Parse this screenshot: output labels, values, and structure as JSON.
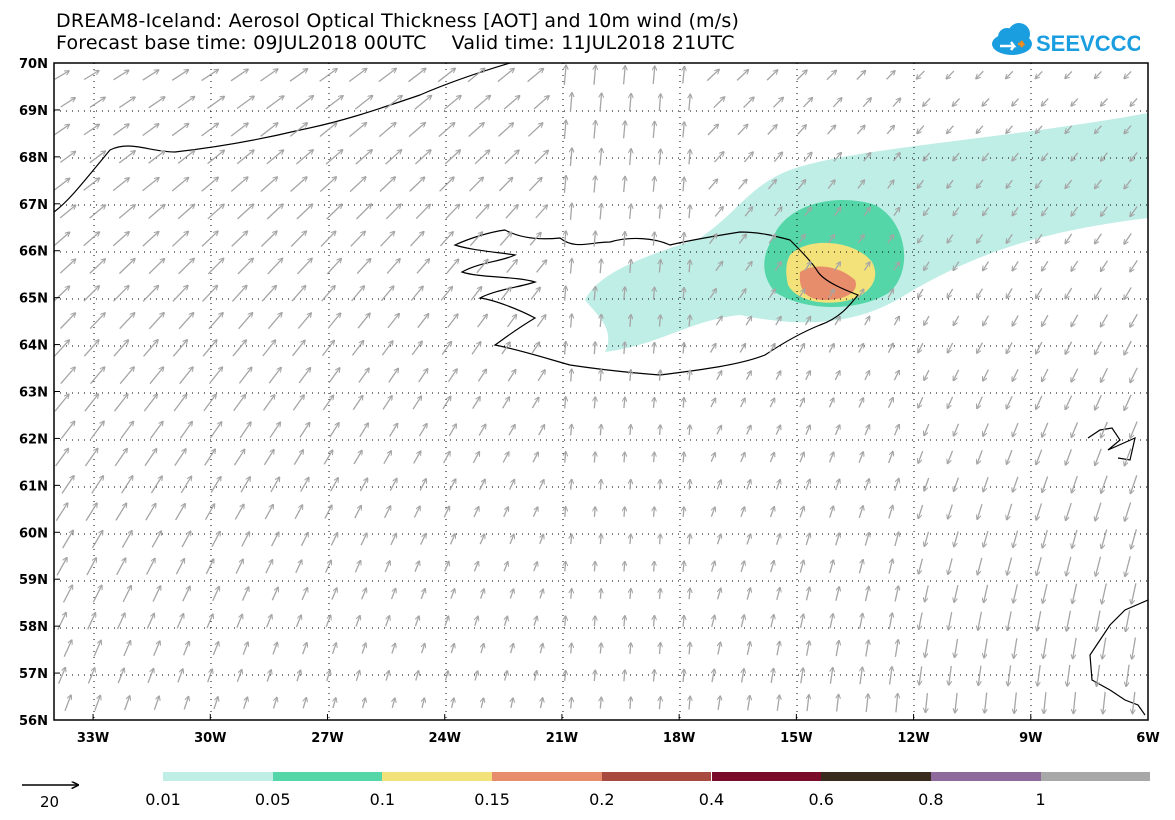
{
  "title": {
    "line1": "DREAM8-Iceland: Aerosol Optical Thickness [AOT] and 10m wind (m/s)",
    "line2": "Forecast base time: 09JUL2018 00UTC    Valid time: 11JUL2018 21UTC"
  },
  "logo": {
    "text": "SEEVCCC",
    "icon": "cloud-icon",
    "color": "#1a9ee0"
  },
  "axes": {
    "lon_range": [
      -34,
      -6
    ],
    "lat_range": [
      56,
      70
    ],
    "lon_labels": [
      "33W",
      "30W",
      "27W",
      "24W",
      "21W",
      "18W",
      "15W",
      "12W",
      "9W",
      "6W"
    ],
    "lat_labels": [
      "56N",
      "57N",
      "58N",
      "59N",
      "60N",
      "61N",
      "62N",
      "63N",
      "64N",
      "65N",
      "66N",
      "67N",
      "68N",
      "69N",
      "70N"
    ],
    "gridlines": "dotted"
  },
  "legend": {
    "colorbar": [
      {
        "label": "0.01",
        "color": "#bfeee6"
      },
      {
        "label": "0.05",
        "color": "#55d6a9"
      },
      {
        "label": "0.1",
        "color": "#f3e27a"
      },
      {
        "label": "0.15",
        "color": "#e88d6c"
      },
      {
        "label": "0.2",
        "color": "#a94a40"
      },
      {
        "label": "0.4",
        "color": "#7a0b2a"
      },
      {
        "label": "0.6",
        "color": "#3a2b1f"
      },
      {
        "label": "0.8",
        "color": "#8e6a9c"
      },
      {
        "label": "1",
        "color": "#a8a8a8"
      }
    ],
    "reference_vector": {
      "value": "20"
    }
  },
  "colors": {
    "wind_arrow": "#a5a5a5",
    "coastline": "#000000"
  }
}
